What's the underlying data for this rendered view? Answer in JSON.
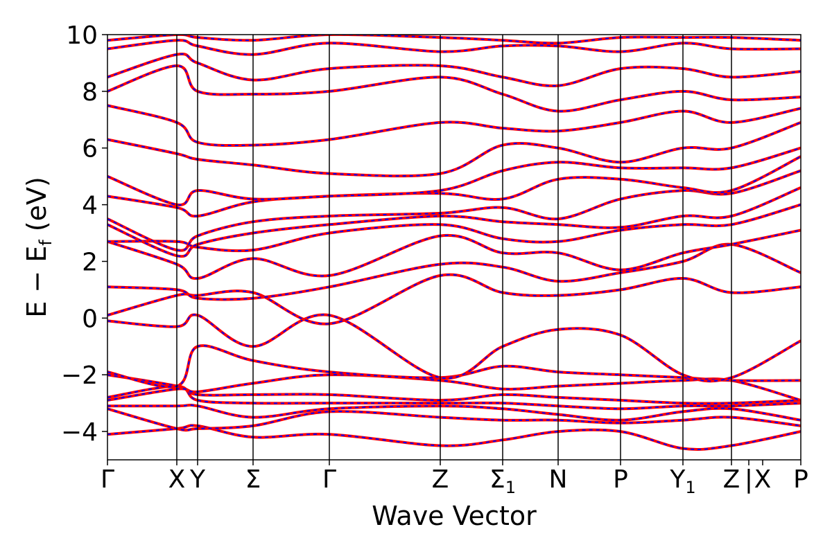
{
  "chart_data": {
    "type": "line",
    "xlabel": "Wave Vector",
    "ylabel": "E − E",
    "ylabel_sub": "f",
    "ylabel_unit": " (eV)",
    "ylim": [
      -5,
      10
    ],
    "yticks": [
      {
        "value": -4,
        "label": "−4"
      },
      {
        "value": -2,
        "label": "−2"
      },
      {
        "value": 0,
        "label": "0"
      },
      {
        "value": 2,
        "label": "2"
      },
      {
        "value": 4,
        "label": "4"
      },
      {
        "value": 6,
        "label": "6"
      },
      {
        "value": 8,
        "label": "8"
      },
      {
        "value": 10,
        "label": "10"
      }
    ],
    "xlim": [
      0,
      10
    ],
    "kpoints": [
      {
        "x": 0,
        "main": "Γ",
        "sub": ""
      },
      {
        "x": 1.0,
        "main": "X",
        "sub": ""
      },
      {
        "x": 1.3,
        "main": "Y",
        "sub": ""
      },
      {
        "x": 2.1,
        "main": "Σ",
        "sub": ""
      },
      {
        "x": 3.2,
        "main": "Γ",
        "sub": ""
      },
      {
        "x": 4.8,
        "main": "Z",
        "sub": ""
      },
      {
        "x": 5.7,
        "main": "Σ",
        "sub": "1"
      },
      {
        "x": 6.5,
        "main": "N",
        "sub": ""
      },
      {
        "x": 7.4,
        "main": "P",
        "sub": ""
      },
      {
        "x": 8.3,
        "main": "Y",
        "sub": "1"
      },
      {
        "x": 9.0,
        "main": "Z",
        "sub": ""
      },
      {
        "x": 9.25,
        "main": "|",
        "sub": ""
      },
      {
        "x": 9.45,
        "main": "X",
        "sub": ""
      },
      {
        "x": 10.0,
        "main": "P",
        "sub": ""
      }
    ],
    "vlines": [
      1.0,
      1.3,
      2.1,
      3.2,
      4.8,
      5.7,
      6.5,
      7.4,
      8.3,
      9.0
    ],
    "grid": false,
    "series": [
      {
        "kx": [
          0,
          1.0,
          1.3,
          2.1,
          3.2,
          4.8,
          5.7,
          6.5,
          7.4,
          8.3,
          9.0,
          10.0
        ],
        "y": [
          -4.1,
          -3.9,
          -3.8,
          -4.2,
          -4.1,
          -4.5,
          -4.3,
          -4.0,
          -4.0,
          -4.6,
          -4.5,
          -4.0
        ],
        "style": "dual"
      },
      {
        "kx": [
          0,
          1.0,
          1.3,
          2.1,
          3.2,
          4.8,
          5.7,
          6.5,
          7.4,
          8.3,
          9.0,
          10.0
        ],
        "y": [
          -3.2,
          -3.9,
          -3.9,
          -3.8,
          -3.3,
          -3.5,
          -3.6,
          -3.6,
          -3.7,
          -3.6,
          -3.5,
          -3.8
        ],
        "style": "dual"
      },
      {
        "kx": [
          0,
          1.0,
          1.3,
          2.1,
          3.2,
          4.8,
          5.7,
          6.5,
          7.4,
          8.3,
          9.0,
          10.0
        ],
        "y": [
          -3.1,
          -3.1,
          -3.1,
          -3.5,
          -3.2,
          -3.1,
          -3.2,
          -3.4,
          -3.6,
          -3.3,
          -3.2,
          -3.6
        ],
        "style": "dual"
      },
      {
        "kx": [
          0,
          1.0,
          1.3,
          2.1,
          3.2,
          4.8,
          5.7,
          6.5,
          7.4,
          8.3,
          9.0,
          10.0
        ],
        "y": [
          -2.8,
          -2.4,
          -2.9,
          -3.0,
          -3.0,
          -3.0,
          -3.0,
          -3.1,
          -3.2,
          -3.1,
          -3.1,
          -3.0
        ],
        "style": "dual"
      },
      {
        "kx": [
          0,
          1.0,
          1.3,
          2.1,
          3.2,
          4.8,
          5.7,
          6.5,
          7.4,
          8.3,
          9.0,
          10.0
        ],
        "y": [
          -2.0,
          -2.4,
          -2.7,
          -2.7,
          -2.7,
          -2.9,
          -2.7,
          -2.8,
          -2.9,
          -3.0,
          -3.0,
          -2.9
        ],
        "style": "dual"
      },
      {
        "kx": [
          0,
          1.0,
          1.3,
          2.1,
          3.2,
          4.8,
          5.7,
          6.5,
          7.4,
          8.3,
          9.0,
          10.0
        ],
        "y": [
          -2.9,
          -2.5,
          -2.6,
          -2.3,
          -2.0,
          -2.2,
          -2.5,
          -2.4,
          -2.3,
          -2.2,
          -2.2,
          -2.9
        ],
        "style": "dual"
      },
      {
        "kx": [
          0,
          1.0,
          1.3,
          2.1,
          3.2,
          4.8,
          5.7,
          6.5,
          7.4,
          8.3,
          9.0,
          10.0
        ],
        "y": [
          -1.9,
          -2.4,
          -1.0,
          -1.5,
          -1.9,
          -2.1,
          -1.7,
          -1.9,
          -2.0,
          -2.1,
          -2.2,
          -2.2
        ],
        "style": "dual"
      },
      {
        "kx": [
          0,
          1.0,
          1.3,
          2.1,
          3.2,
          4.8,
          5.7,
          6.5,
          7.4,
          8.3,
          9.0,
          10.0
        ],
        "y": [
          -0.1,
          -0.3,
          0.1,
          -1.0,
          0.1,
          -2.1,
          -1.0,
          -0.4,
          -0.6,
          -2.0,
          -2.1,
          -0.8
        ],
        "style": "dual"
      },
      {
        "kx": [
          0,
          1.0,
          1.3,
          2.1,
          3.2,
          4.8,
          5.7,
          6.5,
          7.4,
          8.3,
          9.0,
          10.0
        ],
        "y": [
          0.1,
          0.8,
          0.8,
          0.9,
          -0.2,
          1.5,
          0.9,
          0.8,
          1.0,
          1.4,
          0.9,
          1.1
        ],
        "style": "dual"
      },
      {
        "kx": [
          0,
          1.0,
          1.3,
          2.1,
          3.2,
          4.8,
          5.7,
          6.5,
          7.4,
          8.3,
          9.0,
          10.0
        ],
        "y": [
          1.1,
          1.0,
          0.7,
          0.7,
          1.1,
          1.9,
          1.8,
          1.3,
          1.6,
          2.0,
          2.6,
          1.6
        ],
        "style": "dual"
      },
      {
        "kx": [
          0,
          1.0,
          1.3,
          2.1,
          3.2,
          4.8,
          5.7,
          6.5,
          7.4,
          8.3,
          9.0,
          10.0
        ],
        "y": [
          2.7,
          1.9,
          1.4,
          2.1,
          1.5,
          2.9,
          2.3,
          2.3,
          1.7,
          2.3,
          2.6,
          3.1
        ],
        "style": "dual"
      },
      {
        "kx": [
          0,
          1.0,
          1.3,
          2.1,
          3.2,
          4.8,
          5.7,
          6.5,
          7.4,
          8.3,
          9.0,
          10.0
        ],
        "y": [
          2.7,
          2.7,
          2.5,
          2.4,
          3.0,
          3.3,
          2.8,
          2.7,
          3.1,
          3.3,
          3.3,
          4.0
        ],
        "style": "dual"
      },
      {
        "kx": [
          0,
          1.0,
          1.3,
          2.1,
          3.2,
          4.8,
          5.7,
          6.5,
          7.4,
          8.3,
          9.0,
          10.0
        ],
        "y": [
          3.3,
          2.2,
          2.6,
          3.0,
          3.3,
          3.6,
          3.4,
          3.3,
          3.2,
          3.6,
          3.6,
          4.6
        ],
        "style": "dual"
      },
      {
        "kx": [
          0,
          1.0,
          1.3,
          2.1,
          3.2,
          4.8,
          5.7,
          6.5,
          7.4,
          8.3,
          9.0,
          10.0
        ],
        "y": [
          3.5,
          2.4,
          2.9,
          3.4,
          3.6,
          3.7,
          3.9,
          3.5,
          4.2,
          4.5,
          4.4,
          5.2
        ],
        "style": "dual"
      },
      {
        "kx": [
          0,
          1.0,
          1.3,
          2.1,
          3.2,
          4.8,
          5.7,
          6.5,
          7.4,
          8.3,
          9.0,
          10.0
        ],
        "y": [
          4.3,
          3.9,
          3.6,
          4.1,
          4.3,
          4.4,
          4.2,
          4.9,
          4.9,
          4.6,
          4.5,
          5.7
        ],
        "style": "dual"
      },
      {
        "kx": [
          0,
          1.0,
          1.3,
          2.1,
          3.2,
          4.8,
          5.7,
          6.5,
          7.4,
          8.3,
          9.0,
          10.0
        ],
        "y": [
          5.0,
          4.0,
          4.5,
          4.2,
          4.3,
          4.5,
          5.2,
          5.5,
          5.3,
          5.3,
          5.3,
          6.0
        ],
        "style": "dual"
      },
      {
        "kx": [
          0,
          1.0,
          1.3,
          2.1,
          3.2,
          4.8,
          5.7,
          6.5,
          7.4,
          8.3,
          9.0,
          10.0
        ],
        "y": [
          6.3,
          5.8,
          5.6,
          5.4,
          5.1,
          5.1,
          6.1,
          6.0,
          5.5,
          6.0,
          6.0,
          6.9
        ],
        "style": "dual"
      },
      {
        "kx": [
          0,
          1.0,
          1.3,
          2.1,
          3.2,
          4.8,
          5.7,
          6.5,
          7.4,
          8.3,
          9.0,
          10.0
        ],
        "y": [
          7.5,
          6.9,
          6.2,
          6.1,
          6.3,
          6.9,
          6.7,
          6.6,
          6.9,
          7.3,
          6.9,
          7.4
        ],
        "style": "dual"
      },
      {
        "kx": [
          0,
          1.0,
          1.3,
          2.1,
          3.2,
          4.8,
          5.7,
          6.5,
          7.4,
          8.3,
          9.0,
          10.0
        ],
        "y": [
          8.0,
          8.9,
          8.0,
          7.9,
          8.0,
          8.5,
          7.9,
          7.3,
          7.7,
          8.0,
          7.7,
          7.8
        ],
        "style": "dual"
      },
      {
        "kx": [
          0,
          1.0,
          1.3,
          2.1,
          3.2,
          4.8,
          5.7,
          6.5,
          7.4,
          8.3,
          9.0,
          10.0
        ],
        "y": [
          8.5,
          9.3,
          9.0,
          8.4,
          8.8,
          8.9,
          8.5,
          8.2,
          8.8,
          8.8,
          8.5,
          8.7
        ],
        "style": "dual"
      },
      {
        "kx": [
          0,
          1.0,
          1.3,
          2.1,
          3.2,
          4.8,
          5.7,
          6.5,
          7.4,
          8.3,
          9.0,
          10.0
        ],
        "y": [
          9.5,
          9.8,
          9.6,
          9.3,
          9.7,
          9.4,
          9.6,
          9.6,
          9.4,
          9.7,
          9.5,
          9.5
        ],
        "style": "dual"
      },
      {
        "kx": [
          0,
          1.0,
          1.3,
          2.1,
          3.2,
          4.8,
          5.7,
          6.5,
          7.4,
          8.3,
          9.0,
          10.0
        ],
        "y": [
          9.8,
          10.0,
          9.9,
          9.8,
          10.0,
          9.9,
          9.8,
          9.7,
          9.9,
          9.9,
          9.9,
          9.8
        ],
        "style": "dual"
      }
    ],
    "colors": {
      "band_outer": "#ff0000",
      "band_inner": "#0000ff",
      "axes": "#000000"
    }
  }
}
